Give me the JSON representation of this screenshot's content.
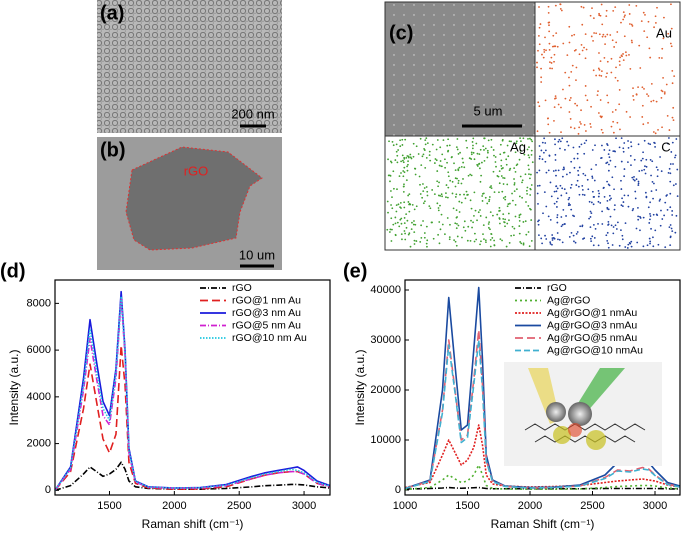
{
  "panels": {
    "a": {
      "label": "(a)",
      "scale": "200 nm"
    },
    "b": {
      "label": "(b)",
      "tag": "rGO",
      "scale": "10 um"
    },
    "c": {
      "label": "(c)",
      "scale": "5 um",
      "maps": [
        "Au",
        "Ag",
        "C"
      ]
    }
  },
  "chart_data": [
    {
      "type": "line",
      "panel": "(d)",
      "x_label": "Raman shift (cm⁻¹)",
      "y_label": "Intensity (a.u.)",
      "xlim": [
        1080,
        3200
      ],
      "ylim": [
        -200,
        9000
      ],
      "xticks": [
        1500,
        2000,
        2500,
        3000
      ],
      "yticks": [
        0,
        2000,
        4000,
        6000,
        8000
      ],
      "x": [
        1080,
        1200,
        1300,
        1350,
        1400,
        1450,
        1500,
        1550,
        1590,
        1620,
        1650,
        1700,
        1800,
        2000,
        2200,
        2400,
        2600,
        2700,
        2800,
        2900,
        2950,
        3000,
        3100,
        3200
      ],
      "series": [
        {
          "name": "rGO",
          "color": "#000000",
          "dash": "6,2,1,2",
          "values": [
            0,
            200,
            700,
            1000,
            800,
            600,
            700,
            900,
            1200,
            900,
            400,
            150,
            80,
            50,
            50,
            80,
            150,
            200,
            220,
            250,
            250,
            230,
            150,
            100
          ]
        },
        {
          "name": "rGO@1 nm Au",
          "color": "#e02020",
          "dash": "8,4",
          "values": [
            0,
            800,
            3500,
            5400,
            3800,
            2200,
            1600,
            2400,
            6200,
            4500,
            1200,
            300,
            100,
            50,
            60,
            150,
            500,
            650,
            750,
            800,
            800,
            700,
            300,
            150
          ]
        },
        {
          "name": "rGO@3 nm Au",
          "color": "#1a1adc",
          "dash": "",
          "values": [
            0,
            1000,
            4800,
            7300,
            5500,
            3800,
            3200,
            5200,
            8500,
            6000,
            1800,
            400,
            150,
            100,
            120,
            250,
            600,
            750,
            850,
            950,
            1000,
            850,
            400,
            200
          ]
        },
        {
          "name": "rGO@5 nm Au",
          "color": "#d020d0",
          "dash": "6,2,1,2",
          "values": [
            0,
            900,
            4300,
            6500,
            4800,
            3200,
            2800,
            4800,
            8200,
            5800,
            1600,
            350,
            130,
            90,
            100,
            200,
            500,
            650,
            750,
            800,
            800,
            700,
            300,
            150
          ]
        },
        {
          "name": "rGO@10 nm Au",
          "color": "#20c8e0",
          "dash": "1.5,1.5",
          "values": [
            0,
            950,
            4500,
            6900,
            5100,
            3500,
            3000,
            5000,
            8300,
            5900,
            1700,
            380,
            140,
            95,
            110,
            220,
            550,
            700,
            800,
            900,
            850,
            750,
            350,
            180
          ]
        }
      ]
    },
    {
      "type": "line",
      "panel": "(e)",
      "x_label": "Raman Shift (cm⁻¹)",
      "y_label": "Intensity (a.u.)",
      "xlim": [
        1000,
        3200
      ],
      "ylim": [
        -1000,
        42000
      ],
      "xticks": [
        1000,
        1500,
        2000,
        2500,
        3000
      ],
      "yticks": [
        0,
        10000,
        20000,
        30000,
        40000
      ],
      "x": [
        1000,
        1200,
        1300,
        1350,
        1400,
        1450,
        1500,
        1550,
        1590,
        1620,
        1650,
        1700,
        1800,
        2000,
        2200,
        2400,
        2600,
        2700,
        2800,
        2900,
        2950,
        3000,
        3100,
        3200
      ],
      "series": [
        {
          "name": "rGO",
          "color": "#000000",
          "dash": "6,2,1,2",
          "values": [
            200,
            300,
            400,
            500,
            400,
            350,
            400,
            450,
            500,
            400,
            300,
            250,
            250,
            250,
            250,
            250,
            300,
            300,
            300,
            300,
            300,
            300,
            250,
            200
          ]
        },
        {
          "name": "Ag@rGO",
          "color": "#50b030",
          "dash": "2,3",
          "values": [
            100,
            500,
            2000,
            3000,
            2200,
            1500,
            1800,
            3000,
            5000,
            3000,
            900,
            300,
            200,
            150,
            150,
            200,
            500,
            700,
            800,
            900,
            900,
            800,
            400,
            200
          ]
        },
        {
          "name": "Ag@rGO@1 nmAu",
          "color": "#e02020",
          "dash": "2,1.5",
          "values": [
            500,
            1500,
            7000,
            10000,
            7500,
            5000,
            6000,
            8500,
            13000,
            9000,
            3000,
            1200,
            800,
            600,
            700,
            900,
            1500,
            1800,
            2000,
            2200,
            2000,
            1800,
            1000,
            600
          ]
        },
        {
          "name": "Ag@rGO@3 nmAu",
          "color": "#1a4aa0",
          "dash": "",
          "values": [
            300,
            2000,
            20000,
            38500,
            25000,
            12000,
            13000,
            28000,
            40500,
            26000,
            7000,
            2000,
            800,
            500,
            600,
            1000,
            3000,
            5500,
            5000,
            6000,
            5500,
            4000,
            1500,
            800
          ]
        },
        {
          "name": "Ag@rGO@5 nmAu",
          "color": "#e06070",
          "dash": "8,4",
          "values": [
            300,
            1800,
            16000,
            30000,
            20000,
            10000,
            11000,
            22000,
            32000,
            21000,
            6000,
            1800,
            700,
            400,
            500,
            800,
            2500,
            4000,
            3800,
            4500,
            4200,
            3000,
            1200,
            600
          ]
        },
        {
          "name": "Ag@rGO@10 nmAu",
          "color": "#40b0d0",
          "dash": "6,3",
          "values": [
            300,
            1700,
            15500,
            29000,
            19500,
            9500,
            10500,
            21000,
            30000,
            20000,
            5800,
            1700,
            700,
            400,
            500,
            800,
            2300,
            3800,
            3600,
            4200,
            4000,
            2900,
            1100,
            600
          ]
        }
      ]
    }
  ]
}
